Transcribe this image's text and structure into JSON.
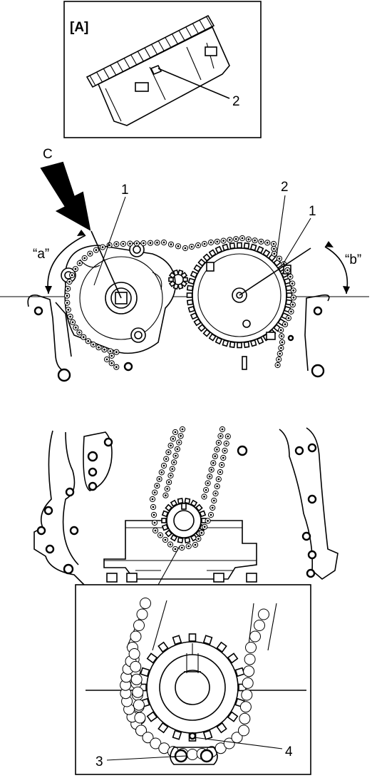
{
  "inset_label": "[A]",
  "callouts": {
    "inset_2": "2",
    "arrow_c": "C",
    "top_1_left": "1",
    "top_2": "2",
    "top_1_right": "1",
    "angle_a": "“a”",
    "angle_b": "“b”",
    "detail_3": "3",
    "detail_4": "4"
  },
  "colors": {
    "line": "#000000",
    "background": "#ffffff",
    "shade": "#d9d9d9"
  }
}
